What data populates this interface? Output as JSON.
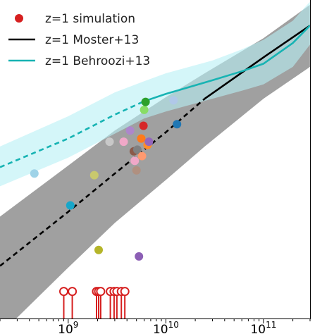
{
  "chart_data": {
    "type": "scatter",
    "title": "",
    "xlabel": "",
    "ylabel": "",
    "x_scale": "log",
    "xlim": [
      200000000,
      300000000000
    ],
    "ylim": [
      0,
      1
    ],
    "grid": false,
    "legend_position": "top-left",
    "x_ticks": [
      {
        "value": 1000000000,
        "base": "10",
        "exp": "9"
      },
      {
        "value": 10000000000,
        "base": "10",
        "exp": "10"
      },
      {
        "value": 100000000000,
        "base": "10",
        "exp": "11"
      }
    ],
    "legend": [
      {
        "label": "z=1 simulation",
        "kind": "marker",
        "color": "#d62020"
      },
      {
        "label": "z=1 Moster+13",
        "kind": "line",
        "color": "#000000"
      },
      {
        "label": "z=1 Behroozi+13",
        "kind": "line",
        "color": "#17b3b3"
      }
    ],
    "series": [
      {
        "name": "z=1 Moster+13",
        "color": "#000000",
        "band_color": "#a0a0a0",
        "x": [
          200000000,
          1000000000,
          3000000000,
          10000000000,
          25000000000,
          100000000000,
          300000000000
        ],
        "y": [
          0.165,
          0.335,
          0.455,
          0.585,
          0.69,
          0.82,
          0.92
        ],
        "y_lower": [
          -0.05,
          0.16,
          0.3,
          0.435,
          0.54,
          0.69,
          0.79
        ],
        "y_upper": [
          0.32,
          0.48,
          0.59,
          0.695,
          0.77,
          0.88,
          0.985
        ],
        "dashed_below": 25000000000
      },
      {
        "name": "z=1 Behroozi+13",
        "color": "#17b3b3",
        "band_color": "#b8f0f5",
        "x": [
          200000000,
          1000000000,
          3000000000,
          6000000000,
          10000000000,
          30000000000,
          60000000000,
          100000000000,
          200000000000,
          300000000000
        ],
        "y": [
          0.475,
          0.565,
          0.64,
          0.682,
          0.705,
          0.748,
          0.776,
          0.8,
          0.865,
          0.92
        ],
        "y_lower": [
          0.415,
          0.505,
          0.58,
          0.628,
          0.65,
          0.69,
          0.715,
          0.735,
          0.79,
          0.86
        ],
        "y_upper": [
          0.54,
          0.635,
          0.71,
          0.745,
          0.77,
          0.81,
          0.845,
          0.875,
          0.935,
          0.995
        ],
        "dashed_below": 6000000000
      }
    ],
    "points": [
      {
        "x": 450000000,
        "y": 0.455,
        "color": "#9fd3e8"
      },
      {
        "x": 1050000000,
        "y": 0.355,
        "color": "#18a6c9"
      },
      {
        "x": 1850000000,
        "y": 0.45,
        "color": "#c9c96e"
      },
      {
        "x": 2050000000,
        "y": 0.215,
        "color": "#b5b52a"
      },
      {
        "x": 2650000000,
        "y": 0.555,
        "color": "#c8c8c8"
      },
      {
        "x": 3700000000,
        "y": 0.555,
        "color": "#f0a8c8"
      },
      {
        "x": 4300000000,
        "y": 0.59,
        "color": "#ad86cc"
      },
      {
        "x": 4700000000,
        "y": 0.525,
        "color": "#8c5a4a"
      },
      {
        "x": 4800000000,
        "y": 0.495,
        "color": "#f0a8c8"
      },
      {
        "x": 5000000000,
        "y": 0.465,
        "color": "#b09080"
      },
      {
        "x": 5100000000,
        "y": 0.53,
        "color": "#808080"
      },
      {
        "x": 5300000000,
        "y": 0.195,
        "color": "#8c5fb5"
      },
      {
        "x": 5600000000,
        "y": 0.565,
        "color": "#ff7a1a"
      },
      {
        "x": 5700000000,
        "y": 0.51,
        "color": "#ff9a70"
      },
      {
        "x": 5900000000,
        "y": 0.605,
        "color": "#d62728"
      },
      {
        "x": 6000000000,
        "y": 0.655,
        "color": "#88dd66"
      },
      {
        "x": 6200000000,
        "y": 0.68,
        "color": "#2ca02c"
      },
      {
        "x": 6500000000,
        "y": 0.545,
        "color": "#ff8c2a"
      },
      {
        "x": 6700000000,
        "y": 0.555,
        "color": "#9467bd"
      },
      {
        "x": 12000000000,
        "y": 0.685,
        "color": "#b0c8e8"
      },
      {
        "x": 13000000000,
        "y": 0.61,
        "color": "#1f77b4"
      }
    ],
    "upper_limits": {
      "color": "#d62020",
      "y_head": 0.085,
      "x": [
        900000000,
        1100000000,
        1950000000,
        2050000000,
        2150000000,
        2700000000,
        2950000000,
        3150000000,
        3500000000,
        3800000000
      ]
    }
  }
}
